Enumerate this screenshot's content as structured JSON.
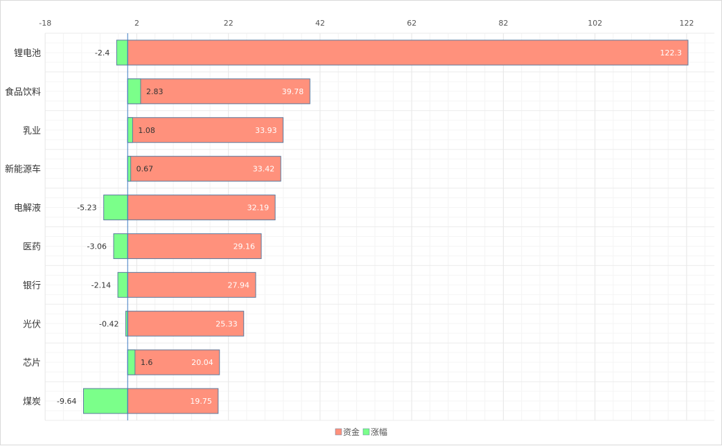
{
  "chart_data": {
    "type": "bar",
    "orientation": "horizontal",
    "categories": [
      "锂电池",
      "食品饮料",
      "乳业",
      "新能源车",
      "电解液",
      "医药",
      "银行",
      "光伏",
      "芯片",
      "煤炭"
    ],
    "series": [
      {
        "name": "资金",
        "color": "#ff917c",
        "values": [
          122.3,
          39.78,
          33.93,
          33.42,
          32.19,
          29.16,
          27.94,
          25.33,
          20.04,
          19.75
        ],
        "value_labels": [
          "122.3",
          "39.78",
          "33.93",
          "33.42",
          "32.19",
          "29.16",
          "27.94",
          "25.33",
          "20.04",
          "19.75"
        ]
      },
      {
        "name": "涨幅",
        "color": "#7bff8a",
        "values": [
          -2.4,
          2.83,
          1.08,
          0.67,
          -5.23,
          -3.06,
          -2.14,
          -0.42,
          1.6,
          -9.64
        ],
        "value_labels": [
          "-2.4",
          "2.83",
          "1.08",
          "0.67",
          "-5.23",
          "-3.06",
          "-2.14",
          "-0.42",
          "1.6",
          "-9.64"
        ]
      }
    ],
    "x_ticks": [
      -18,
      2,
      22,
      42,
      62,
      82,
      102,
      122
    ],
    "x_tick_labels": [
      "-18",
      "2",
      "22",
      "42",
      "62",
      "82",
      "102",
      "122"
    ],
    "xlim": [
      -18,
      128
    ],
    "x_axis_position": "top",
    "grid": true,
    "legend_position": "bottom-center",
    "title": "",
    "xlabel": "",
    "ylabel": ""
  }
}
